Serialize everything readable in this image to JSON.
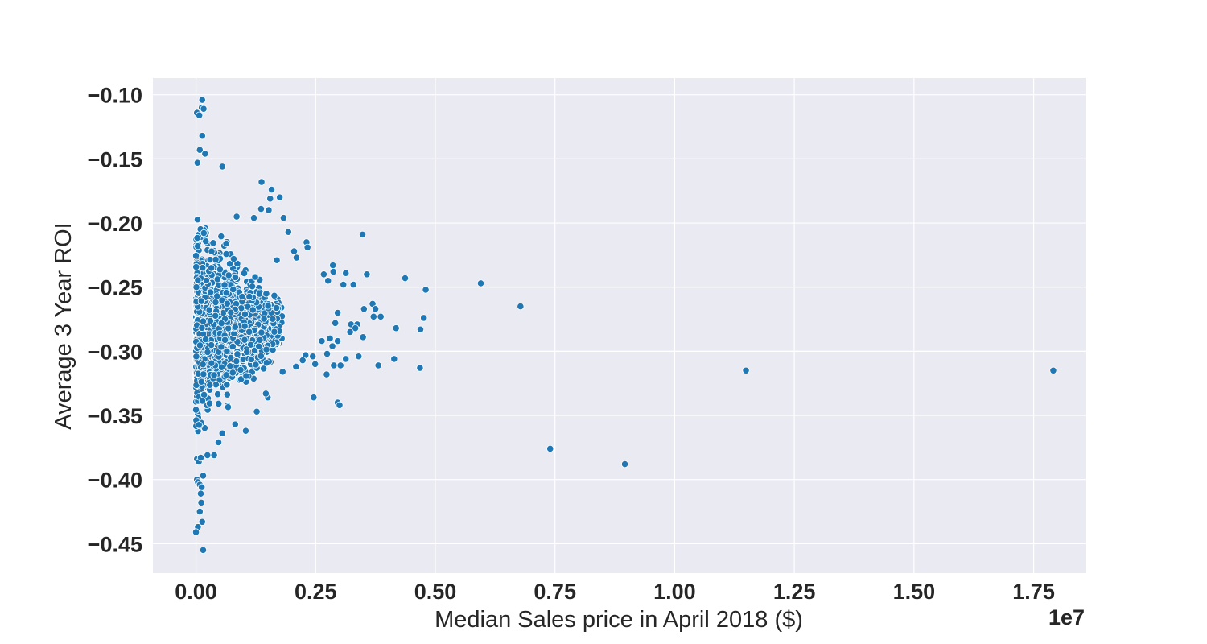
{
  "chart_data": {
    "type": "scatter",
    "title": "",
    "xlabel": "Median Sales price in April 2018 ($)",
    "ylabel": "Average 3 Year ROI",
    "x_offset_label": "1e7",
    "xlim": [
      -0.09,
      1.86
    ],
    "ylim": [
      -0.473,
      -0.087
    ],
    "x_ticks": [
      0.0,
      0.25,
      0.5,
      0.75,
      1.0,
      1.25,
      1.5,
      1.75
    ],
    "x_tick_labels": [
      "0.00",
      "0.25",
      "0.50",
      "0.75",
      "1.00",
      "1.25",
      "1.50",
      "1.75"
    ],
    "y_ticks": [
      -0.1,
      -0.15,
      -0.2,
      -0.25,
      -0.3,
      -0.35,
      -0.4,
      -0.45
    ],
    "y_tick_labels": [
      "−0.10",
      "−0.15",
      "−0.20",
      "−0.25",
      "−0.30",
      "−0.35",
      "−0.40",
      "−0.45"
    ],
    "grid": true,
    "colors": {
      "background": "#eaeaf2",
      "grid": "#ffffff",
      "points": "#1f77b4"
    },
    "cluster": {
      "note_x_units": "1e7 dollars",
      "x_range": [
        0.0,
        0.18
      ],
      "y_range": [
        -0.38,
        -0.15
      ],
      "count": 1300
    },
    "points": [
      [
        0.013,
        -0.104
      ],
      [
        0.012,
        -0.11
      ],
      [
        0.016,
        -0.111
      ],
      [
        0.002,
        -0.114
      ],
      [
        0.007,
        -0.116
      ],
      [
        0.013,
        -0.132
      ],
      [
        0.008,
        -0.143
      ],
      [
        0.019,
        -0.146
      ],
      [
        0.003,
        -0.153
      ],
      [
        0.055,
        -0.156
      ],
      [
        0.137,
        -0.168
      ],
      [
        0.158,
        -0.174
      ],
      [
        0.155,
        -0.181
      ],
      [
        0.175,
        -0.18
      ],
      [
        0.136,
        -0.189
      ],
      [
        0.152,
        -0.19
      ],
      [
        0.121,
        -0.196
      ],
      [
        0.183,
        -0.196
      ],
      [
        0.085,
        -0.195
      ],
      [
        0.193,
        -0.207
      ],
      [
        0.231,
        -0.215
      ],
      [
        0.233,
        -0.219
      ],
      [
        0.205,
        -0.222
      ],
      [
        0.21,
        -0.227
      ],
      [
        0.169,
        -0.229
      ],
      [
        0.348,
        -0.209
      ],
      [
        0.286,
        -0.233
      ],
      [
        0.287,
        -0.238
      ],
      [
        0.313,
        -0.239
      ],
      [
        0.357,
        -0.24
      ],
      [
        0.267,
        -0.24
      ],
      [
        0.276,
        -0.245
      ],
      [
        0.308,
        -0.248
      ],
      [
        0.329,
        -0.248
      ],
      [
        0.437,
        -0.243
      ],
      [
        0.48,
        -0.252
      ],
      [
        0.595,
        -0.247
      ],
      [
        0.678,
        -0.265
      ],
      [
        0.369,
        -0.263
      ],
      [
        0.375,
        -0.267
      ],
      [
        0.351,
        -0.267
      ],
      [
        0.296,
        -0.27
      ],
      [
        0.386,
        -0.273
      ],
      [
        0.371,
        -0.273
      ],
      [
        0.476,
        -0.274
      ],
      [
        0.291,
        -0.278
      ],
      [
        0.324,
        -0.279
      ],
      [
        0.337,
        -0.279
      ],
      [
        0.333,
        -0.282
      ],
      [
        0.418,
        -0.282
      ],
      [
        0.469,
        -0.283
      ],
      [
        0.322,
        -0.285
      ],
      [
        0.349,
        -0.289
      ],
      [
        0.28,
        -0.29
      ],
      [
        0.296,
        -0.292
      ],
      [
        0.263,
        -0.292
      ],
      [
        0.285,
        -0.296
      ],
      [
        0.274,
        -0.302
      ],
      [
        0.244,
        -0.304
      ],
      [
        0.34,
        -0.304
      ],
      [
        0.313,
        -0.306
      ],
      [
        0.414,
        -0.306
      ],
      [
        0.288,
        -0.311
      ],
      [
        0.302,
        -0.311
      ],
      [
        0.381,
        -0.311
      ],
      [
        0.468,
        -0.313
      ],
      [
        0.273,
        -0.318
      ],
      [
        0.181,
        -0.316
      ],
      [
        0.246,
        -0.336
      ],
      [
        0.296,
        -0.34
      ],
      [
        0.3,
        -0.342
      ],
      [
        0.249,
        -0.31
      ],
      [
        0.229,
        -0.303
      ],
      [
        0.223,
        -0.307
      ],
      [
        0.209,
        -0.312
      ],
      [
        1.149,
        -0.315
      ],
      [
        1.791,
        -0.315
      ],
      [
        0.74,
        -0.376
      ],
      [
        0.896,
        -0.388
      ],
      [
        0.024,
        -0.381
      ],
      [
        0.038,
        -0.381
      ],
      [
        0.047,
        -0.371
      ],
      [
        0.055,
        -0.364
      ],
      [
        0.082,
        -0.357
      ],
      [
        0.104,
        -0.362
      ],
      [
        0.127,
        -0.347
      ],
      [
        0.15,
        -0.336
      ],
      [
        0.146,
        -0.333
      ],
      [
        0.002,
        -0.4
      ],
      [
        0.004,
        -0.402
      ],
      [
        0.008,
        -0.404
      ],
      [
        0.012,
        -0.406
      ],
      [
        0.015,
        -0.397
      ],
      [
        0.01,
        -0.411
      ],
      [
        0.011,
        -0.418
      ],
      [
        0.008,
        -0.425
      ],
      [
        0.013,
        -0.433
      ],
      [
        0.004,
        -0.437
      ],
      [
        0.0,
        -0.441
      ],
      [
        0.015,
        -0.455
      ],
      [
        0.002,
        -0.384
      ],
      [
        0.006,
        -0.386
      ],
      [
        0.01,
        -0.383
      ]
    ]
  }
}
